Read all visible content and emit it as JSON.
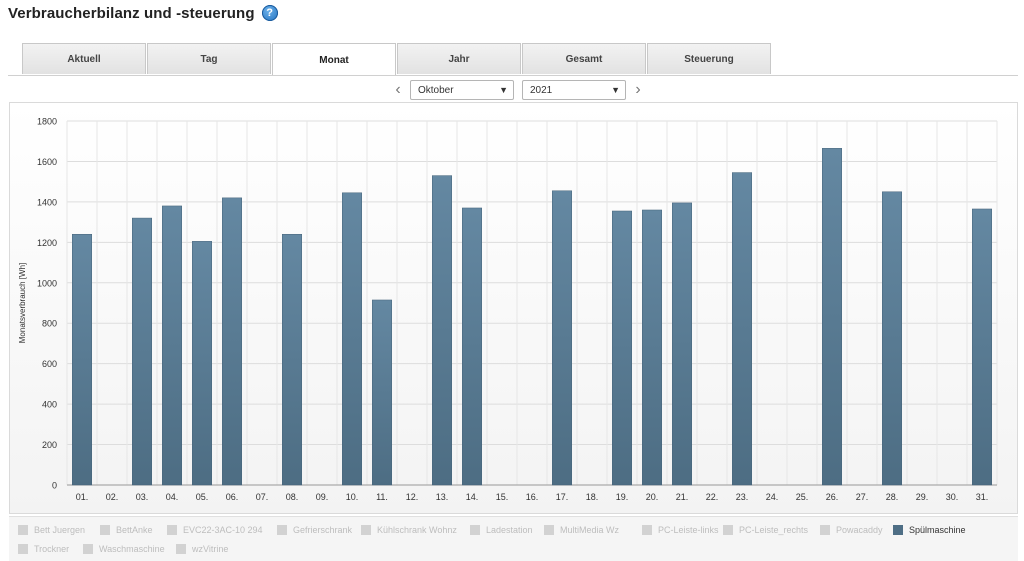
{
  "header": {
    "title": "Verbraucherbilanz und -steuerung",
    "help_icon": "?"
  },
  "tabs": [
    {
      "label": "Aktuell",
      "active": false
    },
    {
      "label": "Tag",
      "active": false
    },
    {
      "label": "Monat",
      "active": true
    },
    {
      "label": "Jahr",
      "active": false
    },
    {
      "label": "Gesamt",
      "active": false
    },
    {
      "label": "Steuerung",
      "active": false
    }
  ],
  "period": {
    "prev_icon": "‹",
    "next_icon": "›",
    "month": "Oktober",
    "year": "2021"
  },
  "chart_data": {
    "type": "bar",
    "ylabel": "Monatsverbrauch [Wh]",
    "ylim": [
      0,
      1800
    ],
    "yticks": [
      0,
      200,
      400,
      600,
      800,
      1000,
      1200,
      1400,
      1600,
      1800
    ],
    "grid": true,
    "categories": [
      "01.",
      "02.",
      "03.",
      "04.",
      "05.",
      "06.",
      "07.",
      "08.",
      "09.",
      "10.",
      "11.",
      "12.",
      "13.",
      "14.",
      "15.",
      "16.",
      "17.",
      "18.",
      "19.",
      "20.",
      "21.",
      "22.",
      "23.",
      "24.",
      "25.",
      "26.",
      "27.",
      "28.",
      "29.",
      "30.",
      "31."
    ],
    "series": [
      {
        "name": "Spülmaschine",
        "color": "#587d96",
        "values": [
          1240,
          0,
          1320,
          1380,
          1205,
          1420,
          0,
          1240,
          0,
          1445,
          915,
          0,
          1530,
          1370,
          0,
          0,
          1455,
          0,
          1355,
          1360,
          1395,
          0,
          1545,
          0,
          0,
          1665,
          0,
          1450,
          0,
          0,
          1365
        ]
      }
    ]
  },
  "legend": [
    {
      "label": "Bett Juergen",
      "active": false
    },
    {
      "label": "BettAnke",
      "active": false
    },
    {
      "label": "EVC22-3AC-10 294",
      "active": false
    },
    {
      "label": "Gefrierschrank",
      "active": false
    },
    {
      "label": "Kühlschrank Wohnz",
      "active": false
    },
    {
      "label": "Ladestation",
      "active": false
    },
    {
      "label": "MultiMedia Wz",
      "active": false
    },
    {
      "label": "PC-Leiste-links",
      "active": false
    },
    {
      "label": "PC-Leiste_rechts",
      "active": false
    },
    {
      "label": "Powacaddy",
      "active": false
    },
    {
      "label": "Spülmaschine",
      "active": true
    },
    {
      "label": "Trockner",
      "active": false
    },
    {
      "label": "Waschmaschine",
      "active": false
    },
    {
      "label": "wzVitrine",
      "active": false
    }
  ]
}
